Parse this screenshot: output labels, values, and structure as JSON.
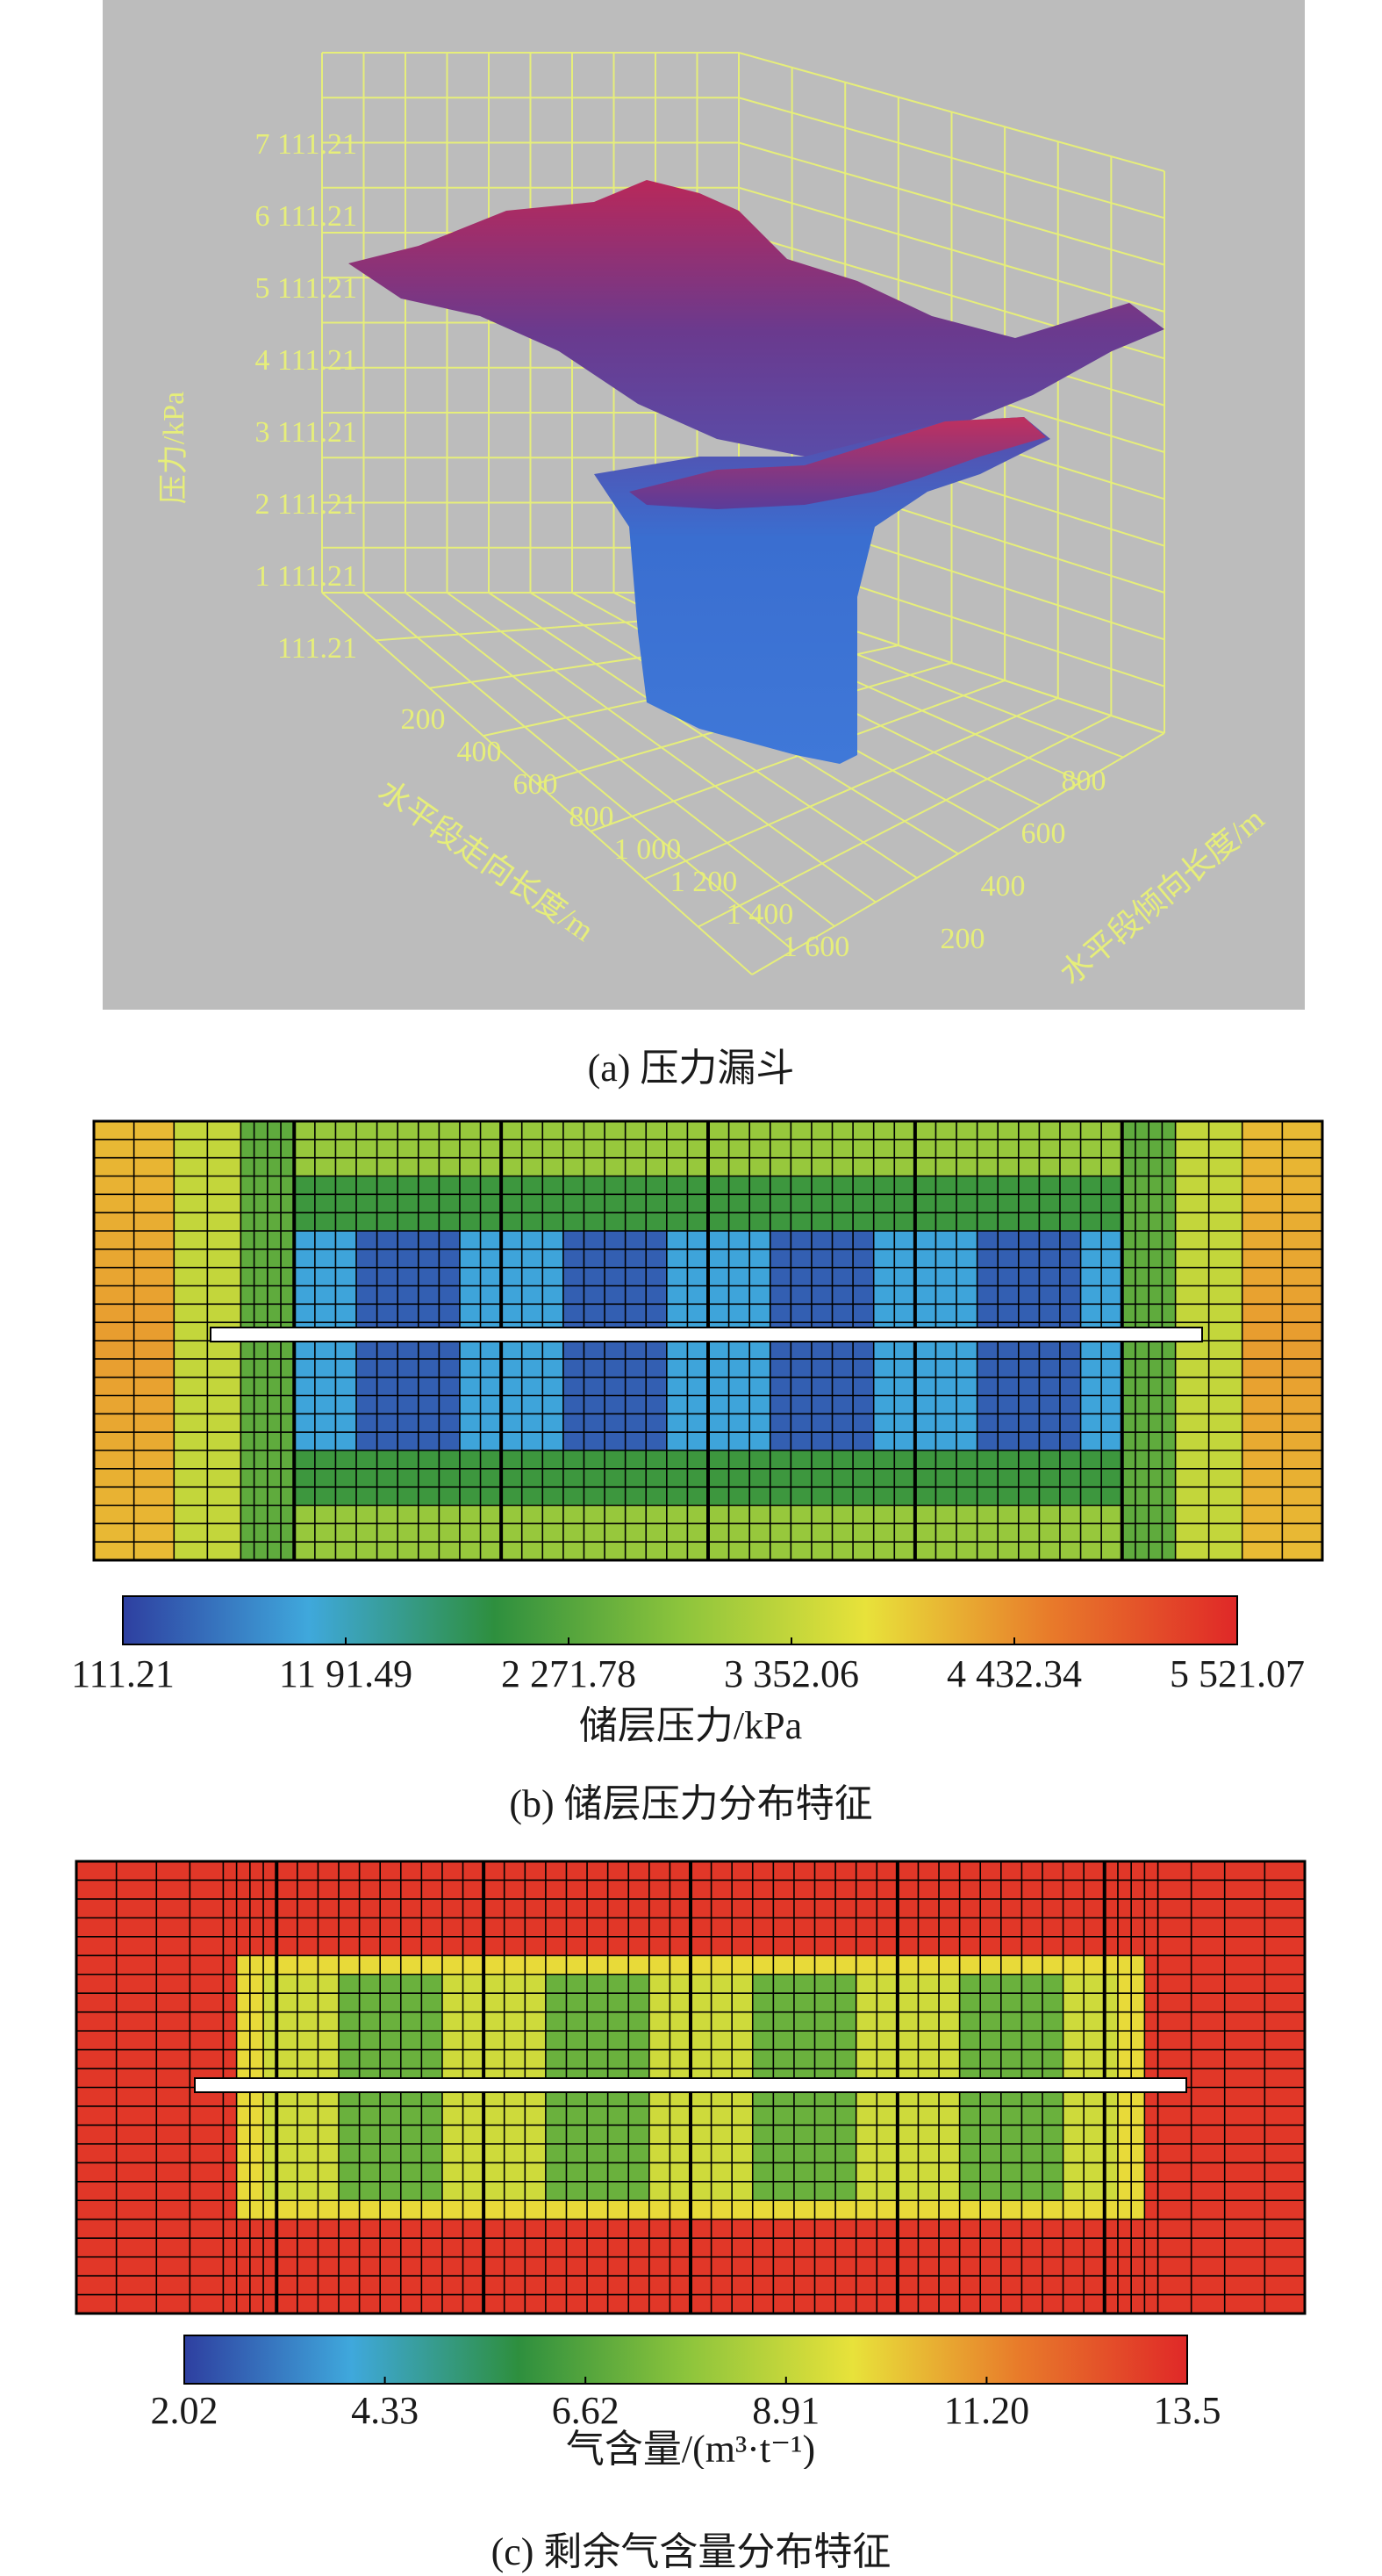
{
  "chart_data": [
    {
      "id": "a",
      "type": "surface3d",
      "caption": "(a) 压力漏斗",
      "zlabel": "压力/kPa",
      "z_ticks": [
        "7 111.21",
        "6 111.21",
        "5 111.21",
        "4 111.21",
        "3 111.21",
        "2 111.21",
        "1 111.21",
        "111.21"
      ],
      "xlabel": "水平段走向长度/m",
      "x_ticks": [
        "200",
        "400",
        "600",
        "800",
        "1 000",
        "1 200",
        "1 400",
        "1 600"
      ],
      "ylabel": "水平段倾向长度/m",
      "y_ticks": [
        "200",
        "400",
        "600",
        "800"
      ],
      "background": "#bcbcbc",
      "grid_color": "#e6ee7a",
      "colors": {
        "high": "#b8285a",
        "mid": "#6a3a8e",
        "low": "#3a6ed0"
      }
    },
    {
      "id": "b",
      "type": "heatmap",
      "caption": "(b) 储层压力分布特征",
      "colorbar_label": "储层压力/kPa",
      "colorbar_ticks": [
        "111.21",
        "11 91.49",
        "2 271.78",
        "3 352.06",
        "4 432.34",
        "5 521.07"
      ],
      "colorbar_range": [
        111.21,
        5521.07
      ],
      "colormap": [
        "#2e3fa0",
        "#3fa8dc",
        "#2e8f3e",
        "#8cc43c",
        "#e8e23a",
        "#e87a2a",
        "#e02828"
      ]
    },
    {
      "id": "c",
      "type": "heatmap",
      "caption": "(c) 剩余气含量分布特征",
      "colorbar_label": "气含量/(m³·t⁻¹)",
      "colorbar_ticks": [
        "2.02",
        "4.33",
        "6.62",
        "8.91",
        "11.20",
        "13.5"
      ],
      "colorbar_range": [
        2.02,
        13.5
      ],
      "colormap": [
        "#2e3fa0",
        "#3fa8dc",
        "#2e8f3e",
        "#8cc43c",
        "#e8e23a",
        "#e87a2a",
        "#e02828"
      ]
    }
  ]
}
